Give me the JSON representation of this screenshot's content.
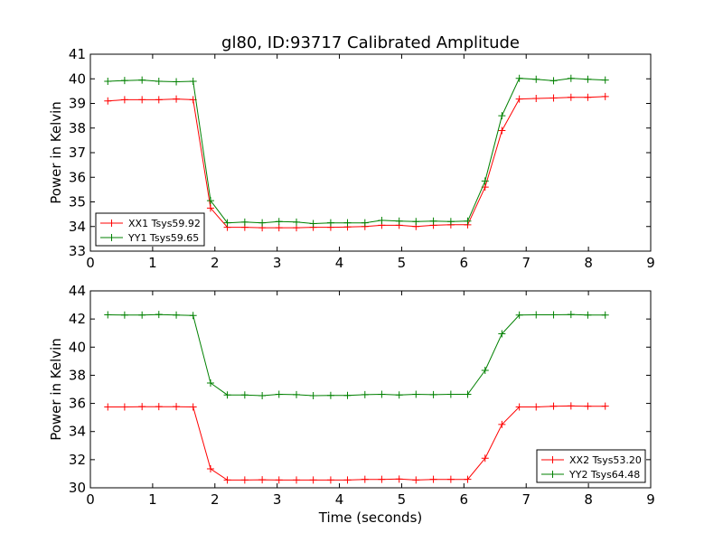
{
  "title": "gl80, ID:93717 Calibrated Amplitude",
  "chart_data": [
    {
      "type": "line",
      "xlabel": "",
      "ylabel": "Power in Kelvin",
      "xlim": [
        0,
        9
      ],
      "ylim": [
        33,
        41
      ],
      "xticks": [
        "0",
        "1",
        "2",
        "3",
        "4",
        "5",
        "6",
        "7",
        "8",
        "9"
      ],
      "yticks": [
        "33",
        "34",
        "35",
        "36",
        "37",
        "38",
        "39",
        "40",
        "41"
      ],
      "legend_position": "lower-left",
      "x": [
        0.28,
        0.55,
        0.83,
        1.1,
        1.38,
        1.65,
        1.93,
        2.2,
        2.48,
        2.76,
        3.03,
        3.31,
        3.58,
        3.86,
        4.13,
        4.41,
        4.68,
        4.96,
        5.23,
        5.51,
        5.79,
        6.06,
        6.34,
        6.61,
        6.89,
        7.16,
        7.44,
        7.72,
        7.99,
        8.27
      ],
      "series": [
        {
          "name": "XX1 Tsys59.92",
          "color": "#ff0000",
          "points": [
            [
              0.28,
              39.1
            ],
            [
              0.55,
              39.15
            ],
            [
              0.83,
              39.15
            ],
            [
              1.1,
              39.15
            ],
            [
              1.38,
              39.18
            ],
            [
              1.65,
              39.15
            ],
            [
              1.93,
              34.75
            ],
            [
              2.2,
              33.97
            ],
            [
              2.48,
              33.97
            ],
            [
              2.76,
              33.95
            ],
            [
              3.03,
              33.95
            ],
            [
              3.31,
              33.95
            ],
            [
              3.58,
              33.97
            ],
            [
              3.86,
              33.97
            ],
            [
              4.13,
              33.98
            ],
            [
              4.41,
              34.0
            ],
            [
              4.68,
              34.05
            ],
            [
              4.96,
              34.05
            ],
            [
              5.23,
              34.0
            ],
            [
              5.51,
              34.05
            ],
            [
              5.79,
              34.07
            ],
            [
              6.06,
              34.07
            ],
            [
              6.34,
              35.6
            ],
            [
              6.61,
              37.9
            ],
            [
              6.89,
              39.18
            ],
            [
              7.16,
              39.2
            ],
            [
              7.44,
              39.22
            ],
            [
              7.72,
              39.25
            ],
            [
              7.99,
              39.25
            ],
            [
              8.27,
              39.28
            ]
          ]
        },
        {
          "name": "YY1 Tsys59.65",
          "color": "#008000",
          "points": [
            [
              0.28,
              39.9
            ],
            [
              0.55,
              39.93
            ],
            [
              0.83,
              39.95
            ],
            [
              1.1,
              39.9
            ],
            [
              1.38,
              39.88
            ],
            [
              1.65,
              39.9
            ],
            [
              1.93,
              35.05
            ],
            [
              2.2,
              34.15
            ],
            [
              2.48,
              34.18
            ],
            [
              2.76,
              34.15
            ],
            [
              3.03,
              34.2
            ],
            [
              3.31,
              34.18
            ],
            [
              3.58,
              34.12
            ],
            [
              3.86,
              34.15
            ],
            [
              4.13,
              34.15
            ],
            [
              4.41,
              34.15
            ],
            [
              4.68,
              34.25
            ],
            [
              4.96,
              34.22
            ],
            [
              5.23,
              34.2
            ],
            [
              5.51,
              34.22
            ],
            [
              5.79,
              34.2
            ],
            [
              6.06,
              34.22
            ],
            [
              6.34,
              35.85
            ],
            [
              6.61,
              38.5
            ],
            [
              6.89,
              40.02
            ],
            [
              7.16,
              39.98
            ],
            [
              7.44,
              39.92
            ],
            [
              7.72,
              40.02
            ],
            [
              7.99,
              39.98
            ],
            [
              8.27,
              39.95
            ]
          ]
        }
      ]
    },
    {
      "type": "line",
      "xlabel": "Time (seconds)",
      "ylabel": "Power in Kelvin",
      "xlim": [
        0,
        9
      ],
      "ylim": [
        30,
        44
      ],
      "xticks": [
        "0",
        "1",
        "2",
        "3",
        "4",
        "5",
        "6",
        "7",
        "8",
        "9"
      ],
      "yticks": [
        "30",
        "32",
        "34",
        "36",
        "38",
        "40",
        "42",
        "44"
      ],
      "legend_position": "lower-right",
      "series": [
        {
          "name": "XX2 Tsys53.20",
          "color": "#ff0000",
          "points": [
            [
              0.28,
              35.75
            ],
            [
              0.55,
              35.75
            ],
            [
              0.83,
              35.77
            ],
            [
              1.1,
              35.77
            ],
            [
              1.38,
              35.77
            ],
            [
              1.65,
              35.75
            ],
            [
              1.93,
              31.35
            ],
            [
              2.2,
              30.55
            ],
            [
              2.48,
              30.55
            ],
            [
              2.76,
              30.57
            ],
            [
              3.03,
              30.55
            ],
            [
              3.31,
              30.55
            ],
            [
              3.58,
              30.55
            ],
            [
              3.86,
              30.55
            ],
            [
              4.13,
              30.55
            ],
            [
              4.41,
              30.6
            ],
            [
              4.68,
              30.6
            ],
            [
              4.96,
              30.62
            ],
            [
              5.23,
              30.55
            ],
            [
              5.51,
              30.6
            ],
            [
              5.79,
              30.6
            ],
            [
              6.06,
              30.6
            ],
            [
              6.34,
              32.1
            ],
            [
              6.61,
              34.5
            ],
            [
              6.89,
              35.75
            ],
            [
              7.16,
              35.75
            ],
            [
              7.44,
              35.8
            ],
            [
              7.72,
              35.82
            ],
            [
              7.99,
              35.8
            ],
            [
              8.27,
              35.8
            ]
          ]
        },
        {
          "name": "YY2 Tsys64.48",
          "color": "#008000",
          "points": [
            [
              0.28,
              42.3
            ],
            [
              0.55,
              42.28
            ],
            [
              0.83,
              42.28
            ],
            [
              1.1,
              42.32
            ],
            [
              1.38,
              42.28
            ],
            [
              1.65,
              42.25
            ],
            [
              1.93,
              37.45
            ],
            [
              2.2,
              36.6
            ],
            [
              2.48,
              36.6
            ],
            [
              2.76,
              36.55
            ],
            [
              3.03,
              36.65
            ],
            [
              3.31,
              36.62
            ],
            [
              3.58,
              36.55
            ],
            [
              3.86,
              36.57
            ],
            [
              4.13,
              36.57
            ],
            [
              4.41,
              36.62
            ],
            [
              4.68,
              36.65
            ],
            [
              4.96,
              36.6
            ],
            [
              5.23,
              36.65
            ],
            [
              5.51,
              36.62
            ],
            [
              5.79,
              36.65
            ],
            [
              6.06,
              36.65
            ],
            [
              6.34,
              38.35
            ],
            [
              6.61,
              40.95
            ],
            [
              6.89,
              42.28
            ],
            [
              7.16,
              42.3
            ],
            [
              7.44,
              42.3
            ],
            [
              7.72,
              42.32
            ],
            [
              7.99,
              42.28
            ],
            [
              8.27,
              42.28
            ]
          ]
        }
      ]
    }
  ]
}
